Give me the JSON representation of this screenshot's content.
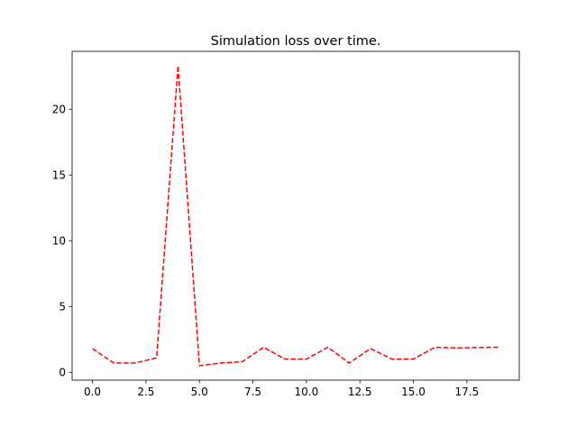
{
  "chart_data": {
    "type": "line",
    "title": "Simulation loss over time.",
    "xlabel": "",
    "ylabel": "",
    "xlim": [
      -0.95,
      19.95
    ],
    "ylim": [
      -0.6,
      24.4
    ],
    "x_ticks": [
      0.0,
      2.5,
      5.0,
      7.5,
      10.0,
      12.5,
      15.0,
      17.5
    ],
    "x_tick_labels": [
      "0.0",
      "2.5",
      "5.0",
      "7.5",
      "10.0",
      "12.5",
      "15.0",
      "17.5"
    ],
    "y_ticks": [
      0,
      5,
      10,
      15,
      20
    ],
    "y_tick_labels": [
      "0",
      "5",
      "10",
      "15",
      "20"
    ],
    "grid": false,
    "series": [
      {
        "color": "#ff0000",
        "line_style": "dashed",
        "x": [
          0,
          1,
          2,
          3,
          4,
          5,
          6,
          7,
          8,
          9,
          10,
          11,
          12,
          13,
          14,
          15,
          16,
          17,
          18,
          19
        ],
        "values": [
          1.8,
          0.7,
          0.7,
          1.1,
          23.3,
          0.5,
          0.7,
          0.8,
          1.9,
          1.0,
          1.0,
          1.9,
          0.7,
          1.8,
          1.0,
          1.0,
          1.9,
          1.85,
          1.88,
          1.9
        ]
      }
    ]
  }
}
